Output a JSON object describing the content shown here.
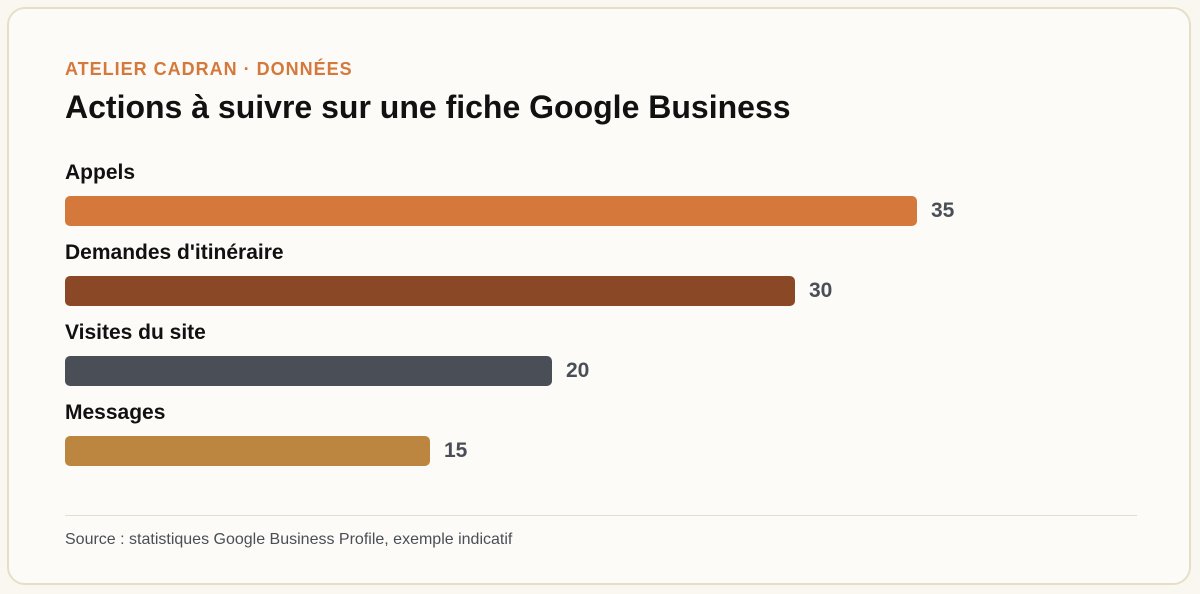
{
  "header": {
    "eyebrow": "ATELIER CADRAN · DONNÉES",
    "title": "Actions à suivre sur une fiche Google Business"
  },
  "chart_data": {
    "type": "bar",
    "orientation": "horizontal",
    "title": "Actions à suivre sur une fiche Google Business",
    "categories": [
      "Appels",
      "Demandes d'itinéraire",
      "Visites du site",
      "Messages"
    ],
    "values": [
      35,
      30,
      20,
      15
    ],
    "colors": [
      "#d4783b",
      "#8b4826",
      "#4a4f57",
      "#bc8640"
    ],
    "value_max": 40,
    "grid": false,
    "legend": "none",
    "xlabel": "",
    "ylabel": ""
  },
  "footer": {
    "source": "Source : statistiques Google Business Profile, exemple indicatif"
  }
}
